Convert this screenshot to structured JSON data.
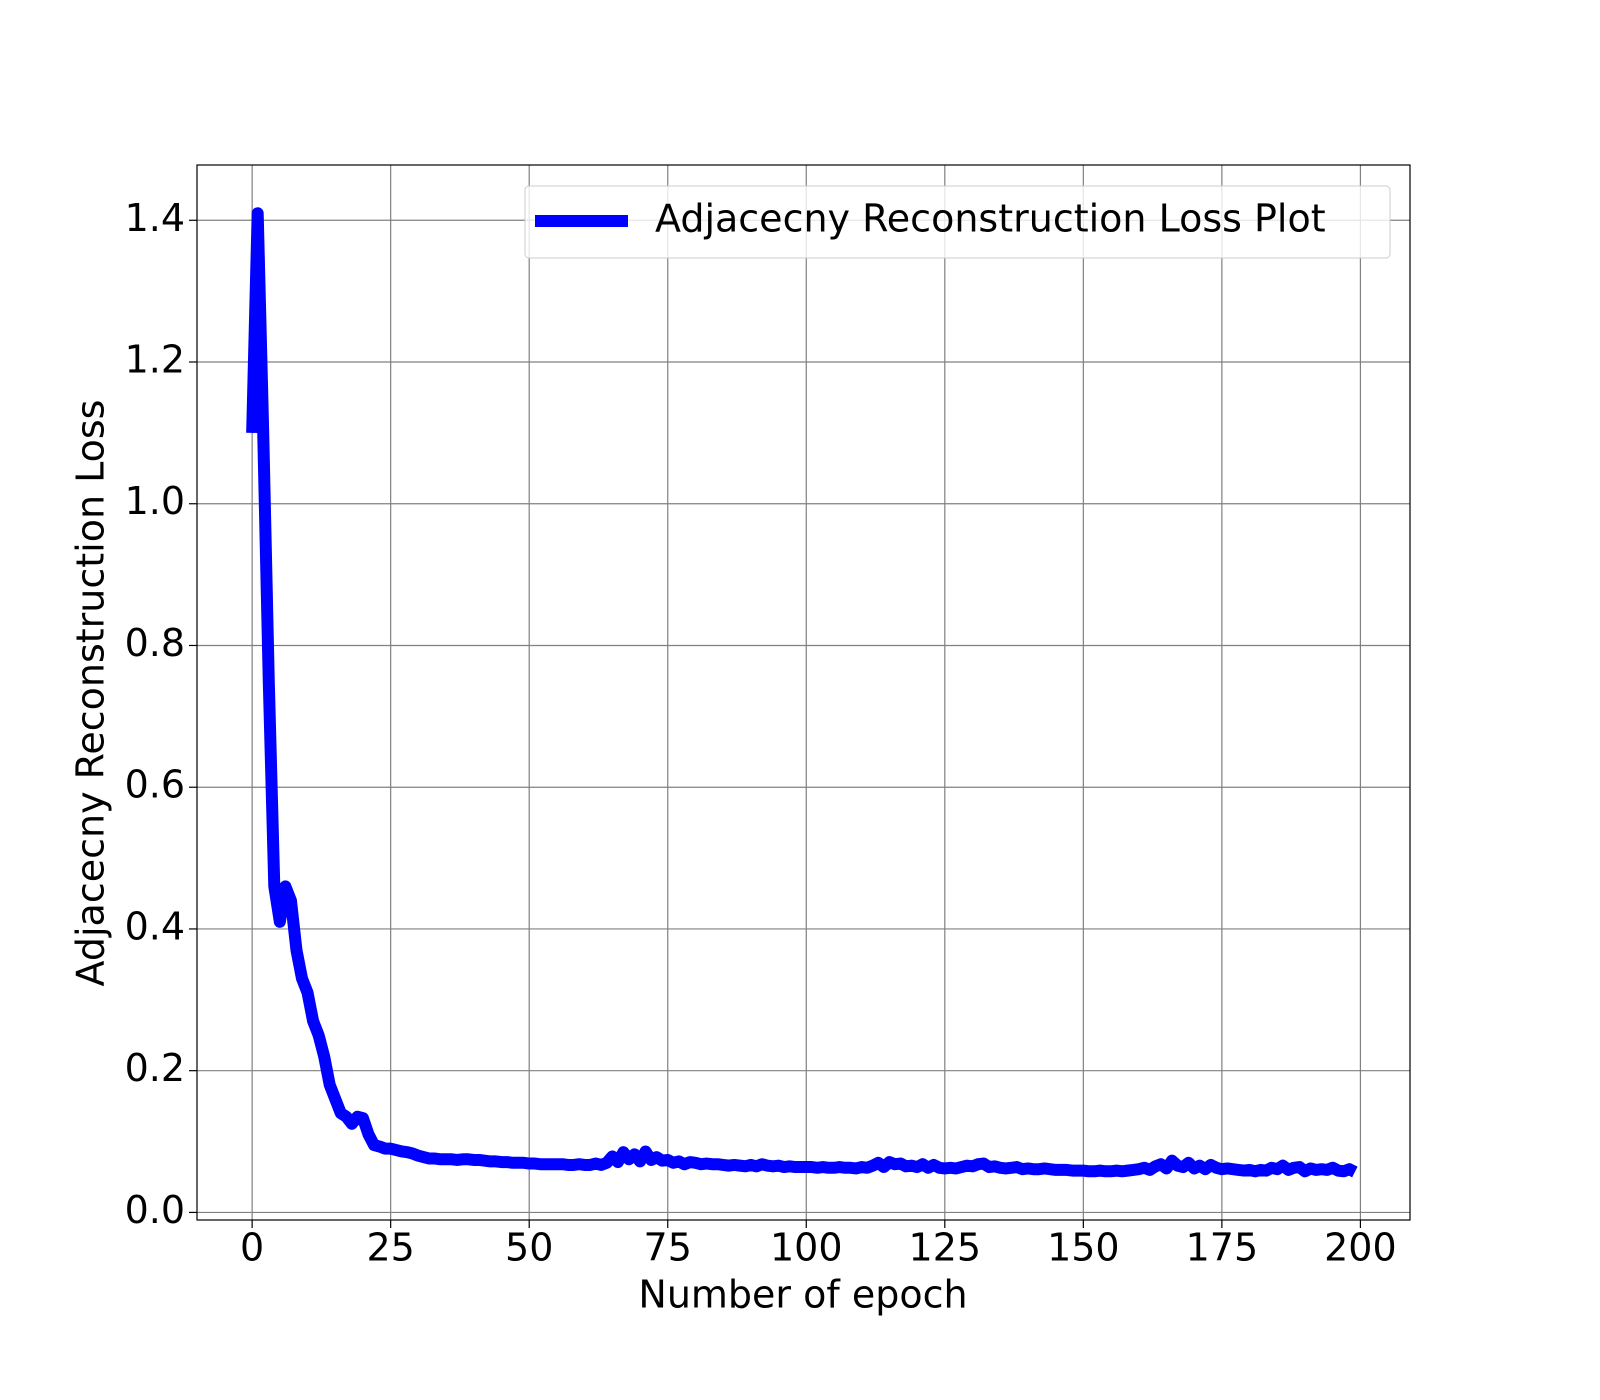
{
  "chart_data": {
    "type": "line",
    "x_label": "Number of epoch",
    "y_label": "Adjacecny Reconstruction Loss",
    "x": [
      0,
      1,
      2,
      3,
      4,
      5,
      6,
      7,
      8,
      9,
      10,
      11,
      12,
      13,
      14,
      15,
      16,
      17,
      18,
      19,
      20,
      21,
      22,
      23,
      24,
      25,
      26,
      27,
      28,
      29,
      30,
      31,
      32,
      33,
      34,
      35,
      36,
      37,
      38,
      39,
      40,
      41,
      42,
      43,
      44,
      45,
      46,
      47,
      48,
      49,
      50,
      51,
      52,
      53,
      54,
      55,
      56,
      57,
      58,
      59,
      60,
      61,
      62,
      63,
      64,
      65,
      66,
      67,
      68,
      69,
      70,
      71,
      72,
      73,
      74,
      75,
      76,
      77,
      78,
      79,
      80,
      81,
      82,
      83,
      84,
      85,
      86,
      87,
      88,
      89,
      90,
      91,
      92,
      93,
      94,
      95,
      96,
      97,
      98,
      99,
      100,
      101,
      102,
      103,
      104,
      105,
      106,
      107,
      108,
      109,
      110,
      111,
      112,
      113,
      114,
      115,
      116,
      117,
      118,
      119,
      120,
      121,
      122,
      123,
      124,
      125,
      126,
      127,
      128,
      129,
      130,
      131,
      132,
      133,
      134,
      135,
      136,
      137,
      138,
      139,
      140,
      141,
      142,
      143,
      144,
      145,
      146,
      147,
      148,
      149,
      150,
      151,
      152,
      153,
      154,
      155,
      156,
      157,
      158,
      159,
      160,
      161,
      162,
      163,
      164,
      165,
      166,
      167,
      168,
      169,
      170,
      171,
      172,
      173,
      174,
      175,
      176,
      177,
      178,
      179,
      180,
      181,
      182,
      183,
      184,
      185,
      186,
      187,
      188,
      189,
      190,
      191,
      192,
      193,
      194,
      195,
      196,
      197,
      198,
      199
    ],
    "series": [
      {
        "name": "Adjacecny Reconstruction Loss Plot",
        "color": "#0000ff",
        "values": [
          1.1,
          1.41,
          1.1,
          0.75,
          0.46,
          0.41,
          0.46,
          0.44,
          0.37,
          0.33,
          0.31,
          0.27,
          0.25,
          0.22,
          0.18,
          0.16,
          0.14,
          0.135,
          0.125,
          0.135,
          0.133,
          0.11,
          0.095,
          0.093,
          0.09,
          0.09,
          0.088,
          0.086,
          0.085,
          0.083,
          0.08,
          0.078,
          0.076,
          0.076,
          0.075,
          0.075,
          0.075,
          0.074,
          0.075,
          0.075,
          0.074,
          0.074,
          0.073,
          0.072,
          0.072,
          0.071,
          0.071,
          0.07,
          0.07,
          0.07,
          0.069,
          0.069,
          0.068,
          0.068,
          0.068,
          0.068,
          0.068,
          0.067,
          0.067,
          0.068,
          0.067,
          0.067,
          0.069,
          0.067,
          0.07,
          0.079,
          0.071,
          0.085,
          0.075,
          0.082,
          0.072,
          0.086,
          0.074,
          0.078,
          0.073,
          0.074,
          0.07,
          0.072,
          0.068,
          0.071,
          0.07,
          0.068,
          0.069,
          0.068,
          0.068,
          0.067,
          0.066,
          0.067,
          0.066,
          0.065,
          0.067,
          0.065,
          0.068,
          0.066,
          0.065,
          0.066,
          0.064,
          0.065,
          0.064,
          0.064,
          0.064,
          0.064,
          0.063,
          0.064,
          0.063,
          0.063,
          0.064,
          0.063,
          0.063,
          0.062,
          0.064,
          0.063,
          0.066,
          0.07,
          0.064,
          0.071,
          0.068,
          0.069,
          0.065,
          0.066,
          0.064,
          0.068,
          0.063,
          0.067,
          0.063,
          0.062,
          0.063,
          0.062,
          0.064,
          0.066,
          0.065,
          0.068,
          0.069,
          0.064,
          0.065,
          0.063,
          0.062,
          0.063,
          0.064,
          0.061,
          0.062,
          0.061,
          0.061,
          0.062,
          0.061,
          0.06,
          0.06,
          0.06,
          0.059,
          0.059,
          0.059,
          0.058,
          0.058,
          0.059,
          0.058,
          0.058,
          0.059,
          0.058,
          0.059,
          0.06,
          0.061,
          0.063,
          0.06,
          0.065,
          0.068,
          0.062,
          0.073,
          0.066,
          0.064,
          0.07,
          0.062,
          0.066,
          0.061,
          0.067,
          0.063,
          0.061,
          0.062,
          0.061,
          0.06,
          0.059,
          0.06,
          0.058,
          0.06,
          0.059,
          0.063,
          0.061,
          0.066,
          0.06,
          0.063,
          0.064,
          0.058,
          0.062,
          0.06,
          0.061,
          0.06,
          0.063,
          0.059,
          0.058,
          0.061,
          0.057
        ]
      }
    ],
    "xlim": [
      -9.95,
      208.95
    ],
    "ylim": [
      -0.0107,
      1.478
    ],
    "xticks": [
      0,
      25,
      50,
      75,
      100,
      125,
      150,
      175,
      200
    ],
    "yticks": [
      {
        "value": 0,
        "label": "0.0"
      },
      0.2,
      0.4,
      0.6,
      0.8,
      {
        "value": 1,
        "label": "1.0"
      },
      1.2,
      1.4
    ],
    "grid": true,
    "legend": "upper right"
  }
}
